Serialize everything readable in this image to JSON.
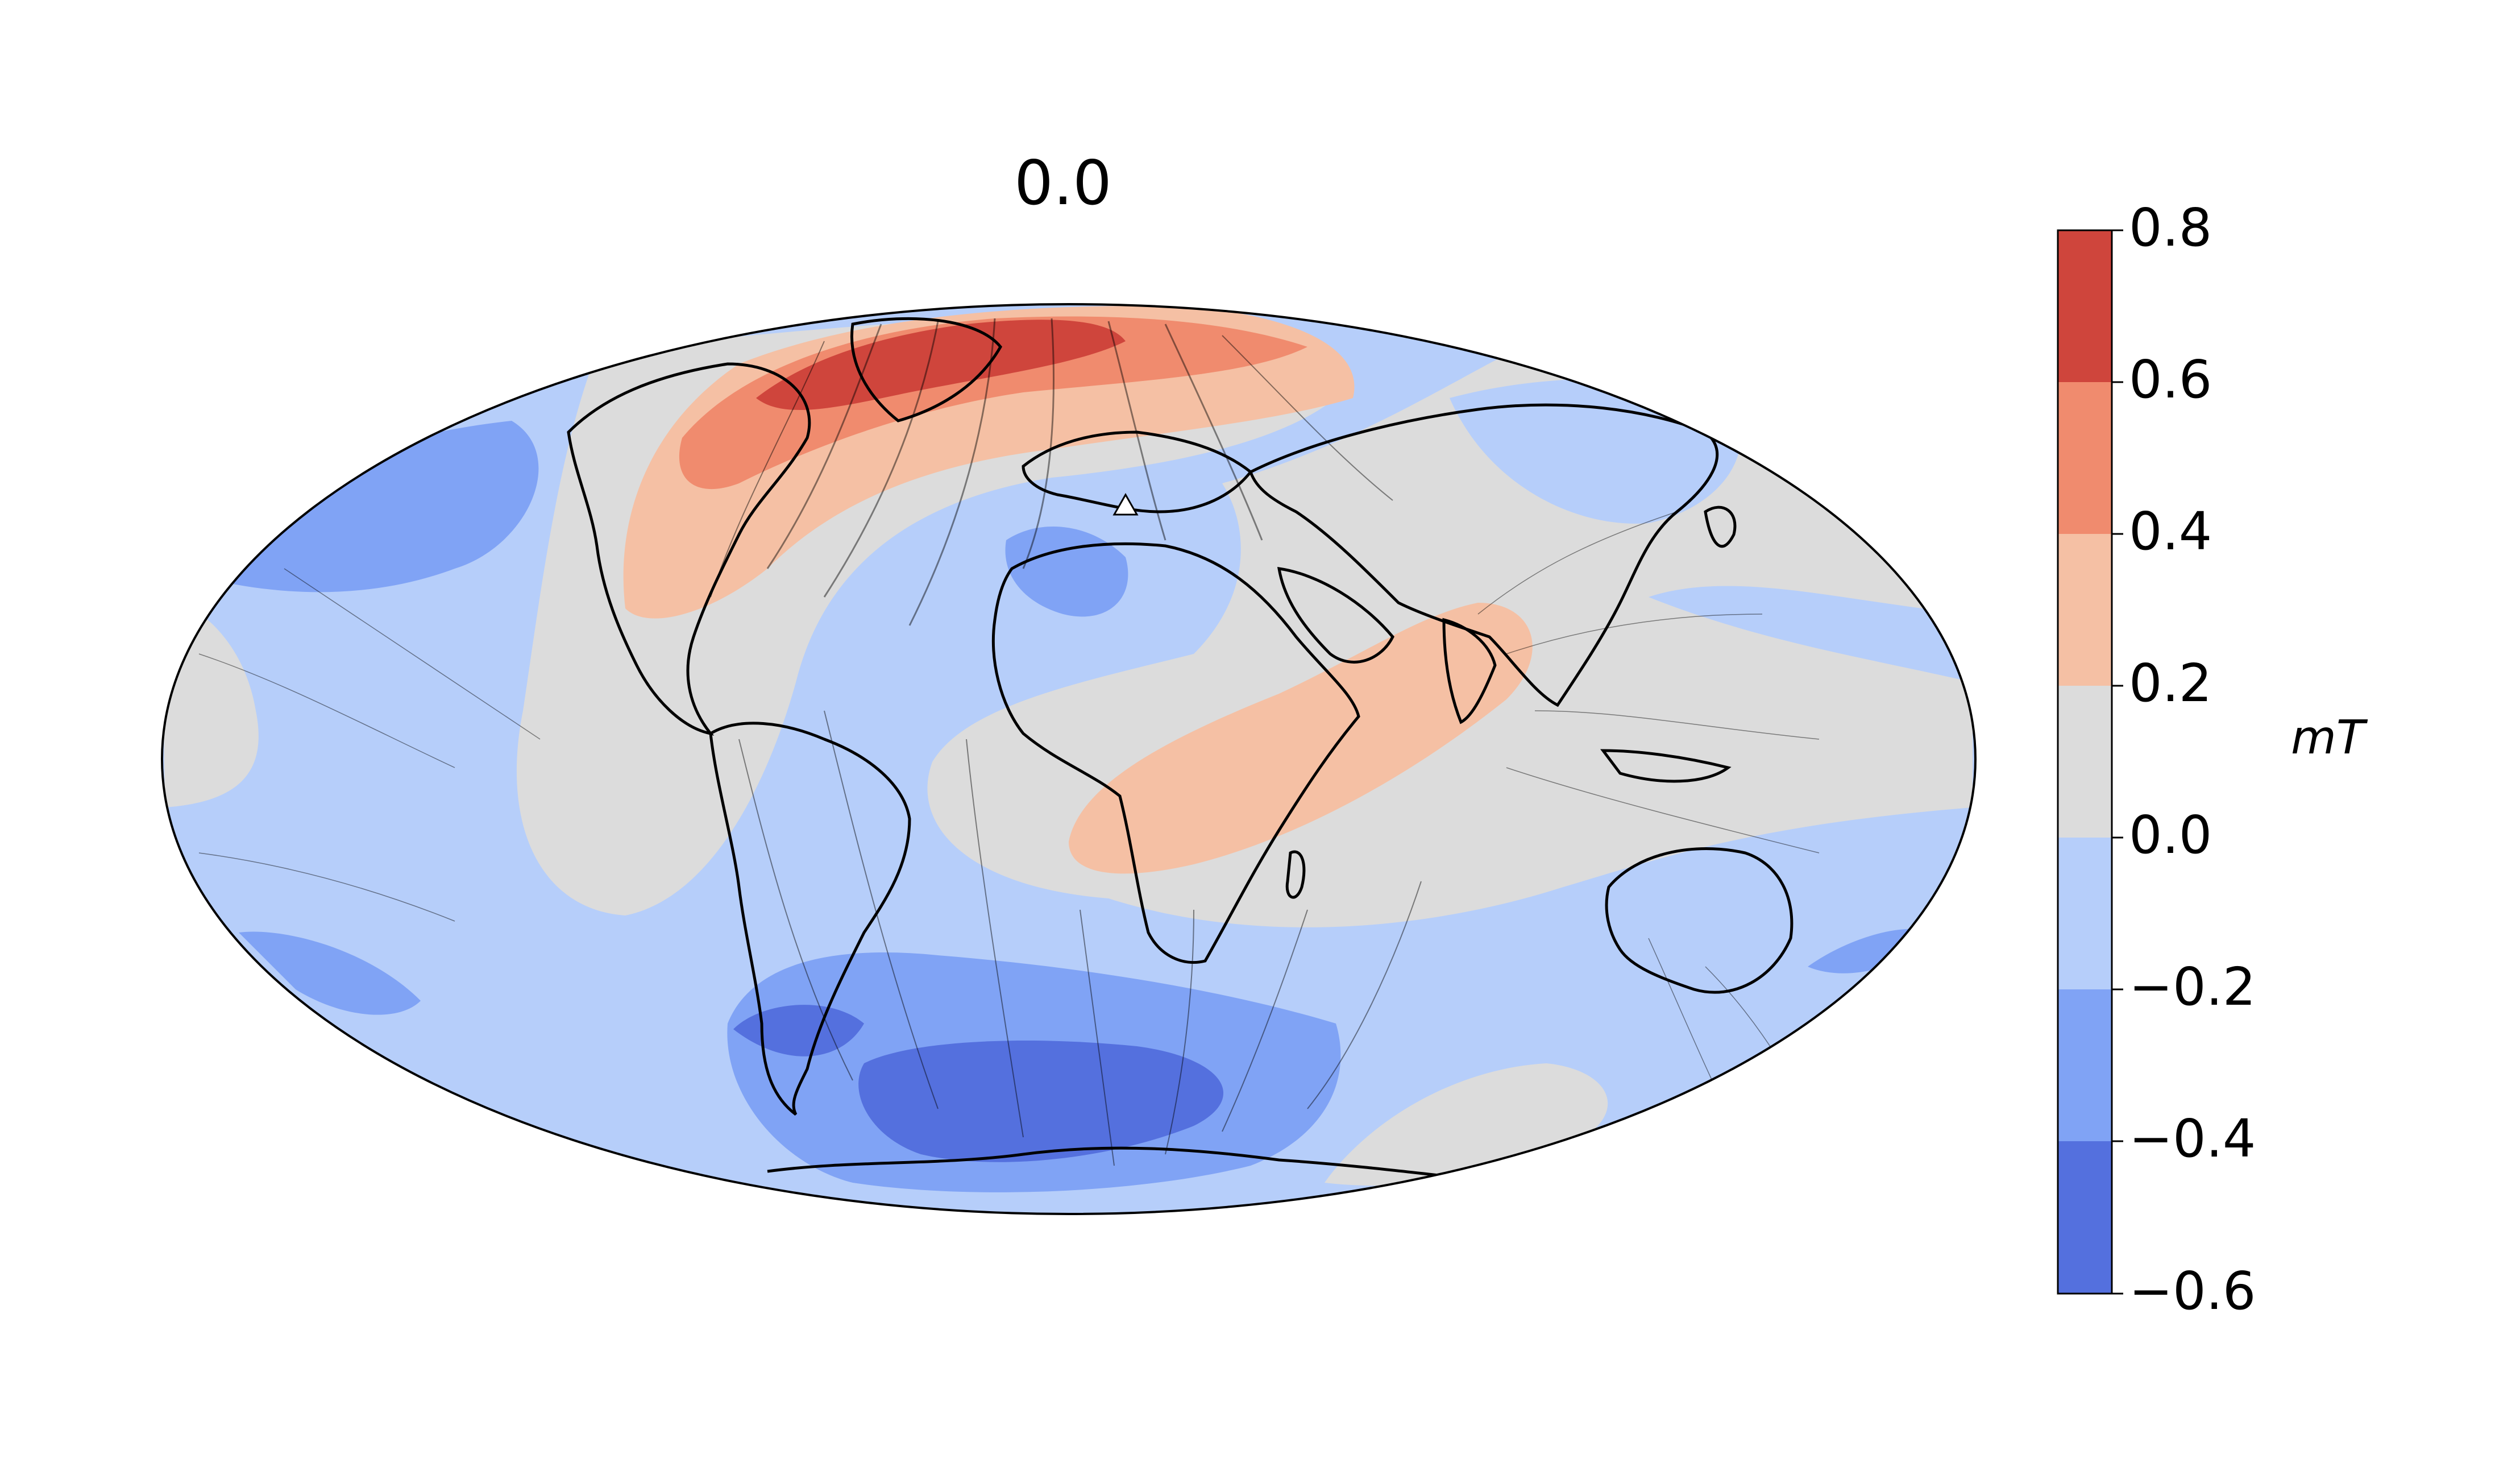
{
  "title": "0.0",
  "colorbar": {
    "unit_label": "mT",
    "ticks": [
      "0.8",
      "0.6",
      "0.4",
      "0.2",
      "0.0",
      "−0.2",
      "−0.4",
      "−0.6"
    ],
    "levels": [
      {
        "range": [
          0.6,
          0.8
        ],
        "color": "#cf453c"
      },
      {
        "range": [
          0.4,
          0.6
        ],
        "color": "#f08b6e"
      },
      {
        "range": [
          0.2,
          0.4
        ],
        "color": "#f5c0a4"
      },
      {
        "range": [
          0.0,
          0.2
        ],
        "color": "#dcdcdc"
      },
      {
        "range": [
          -0.2,
          0.0
        ],
        "color": "#b6cefa"
      },
      {
        "range": [
          -0.4,
          -0.2
        ],
        "color": "#80a3f5"
      },
      {
        "range": [
          -0.6,
          -0.4
        ],
        "color": "#5470de"
      }
    ]
  },
  "map": {
    "projection": "Hammer/Mollweide (global)",
    "marker": "white triangle (site near Italy)",
    "background_color": "#b6cefa"
  }
}
